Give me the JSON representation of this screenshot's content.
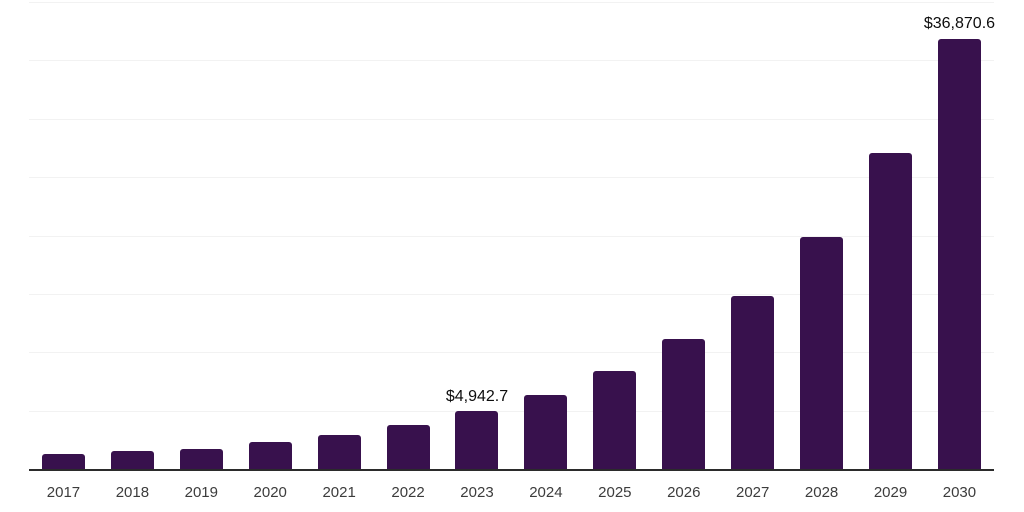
{
  "chart_data": {
    "type": "bar",
    "title": "",
    "categories": [
      "2017",
      "2018",
      "2019",
      "2020",
      "2021",
      "2022",
      "2023",
      "2024",
      "2025",
      "2026",
      "2027",
      "2028",
      "2029",
      "2030"
    ],
    "values": [
      1320,
      1580,
      1750,
      2340,
      2940,
      3790,
      4942.7,
      6350,
      8400,
      11120,
      14790,
      19900,
      27070,
      36870.6
    ],
    "value_labels": {
      "2023": "$4,942.7",
      "2030": "$36,870.6"
    },
    "xlabel": "",
    "ylabel": "",
    "ylim": [
      0,
      40000
    ],
    "gridline_step": 5000,
    "grid": "horizontal",
    "y_tick_labels_shown": false,
    "legend": "none",
    "colors": {
      "bar": "#38114d",
      "grid": "#f2f2f2",
      "axis": "#2b2b2b",
      "tick_label": "#3c3c3c",
      "value_label": "#0d0d0d",
      "background": "#ffffff"
    }
  }
}
